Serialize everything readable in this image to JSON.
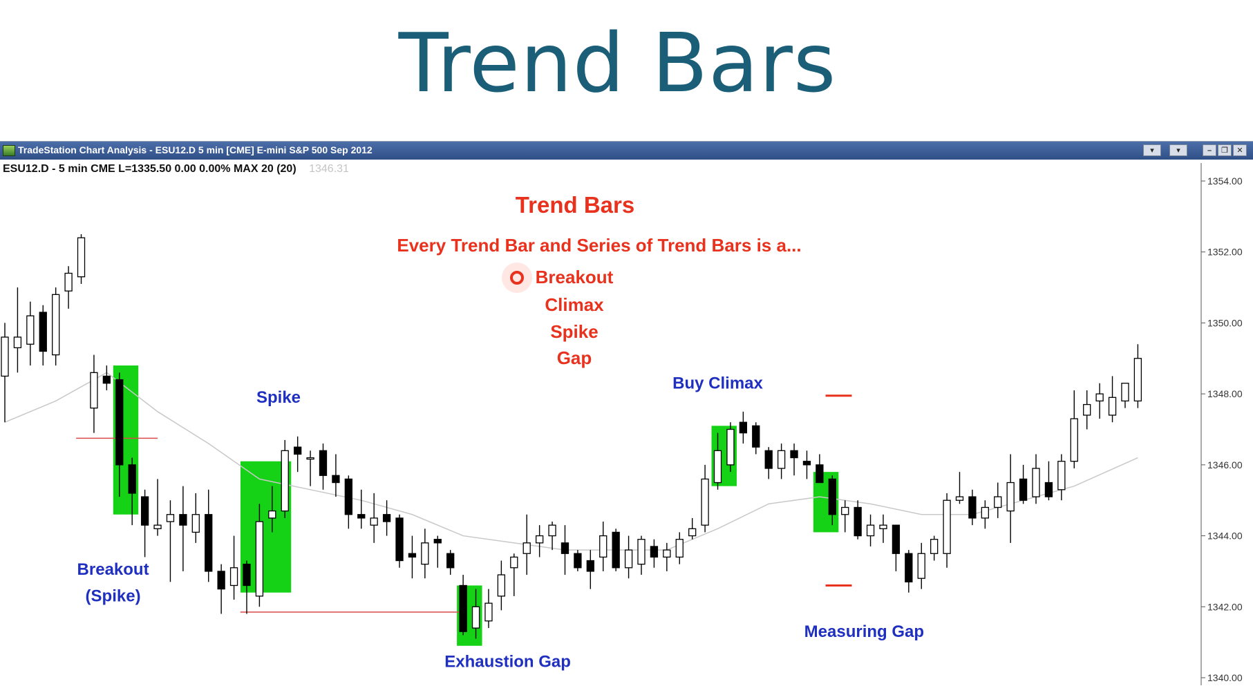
{
  "slide": {
    "title": "Trend Bars"
  },
  "window": {
    "title": "TradeStation Chart Analysis - ESU12.D 5 min [CME] E-mini S&P 500 Sep 2012",
    "symbol_line": "ESU12.D - 5 min  CME  L=1335.50  0.00  0.00%  MAX 20 (20)",
    "last_price_text": "1346.31",
    "controls": [
      "minimize",
      "restore",
      "close"
    ]
  },
  "colors": {
    "candle_up_fill": "#ffffff",
    "candle_down_fill": "#000000",
    "highlight_green": "#16d216",
    "annotation_red": "#e8321e",
    "annotation_blue": "#1f2fbf",
    "moving_average": "#c8c8c8",
    "level_line": "#d94a4a"
  },
  "chart_data": {
    "type": "candlestick",
    "title": "Trend Bars",
    "subtitle": "Every Trend Bar and Series of Trend Bars is a...",
    "list_items": [
      "Breakout",
      "Climax",
      "Spike",
      "Gap"
    ],
    "y_axis": {
      "range": [
        1339.8,
        1354.5
      ],
      "ticks": [
        1354,
        1352,
        1350,
        1348,
        1346,
        1344,
        1342,
        1340
      ],
      "tick_labels": [
        "1354.00",
        "1352.00",
        "1350.00",
        "1348.00",
        "1346.00",
        "1344.00",
        "1342.00",
        "1340.00"
      ]
    },
    "candles": [
      {
        "o": 1348.5,
        "h": 1350.0,
        "l": 1347.2,
        "c": 1349.6
      },
      {
        "o": 1349.3,
        "h": 1351.0,
        "l": 1348.6,
        "c": 1349.6
      },
      {
        "o": 1349.4,
        "h": 1350.6,
        "l": 1348.8,
        "c": 1350.2
      },
      {
        "o": 1350.3,
        "h": 1350.5,
        "l": 1348.8,
        "c": 1349.2
      },
      {
        "o": 1349.1,
        "h": 1351.0,
        "l": 1348.8,
        "c": 1350.8
      },
      {
        "o": 1350.9,
        "h": 1351.6,
        "l": 1350.4,
        "c": 1351.4
      },
      {
        "o": 1351.3,
        "h": 1352.5,
        "l": 1351.1,
        "c": 1352.4
      },
      {
        "o": 1347.6,
        "h": 1349.1,
        "l": 1346.9,
        "c": 1348.6
      },
      {
        "o": 1348.5,
        "h": 1348.8,
        "l": 1348.1,
        "c": 1348.3
      },
      {
        "o": 1348.4,
        "h": 1348.6,
        "l": 1345.1,
        "c": 1346.0
      },
      {
        "o": 1346.0,
        "h": 1346.2,
        "l": 1344.3,
        "c": 1345.2
      },
      {
        "o": 1345.1,
        "h": 1345.3,
        "l": 1343.4,
        "c": 1344.3
      },
      {
        "o": 1344.2,
        "h": 1345.6,
        "l": 1344.0,
        "c": 1344.3
      },
      {
        "o": 1344.4,
        "h": 1345.0,
        "l": 1342.7,
        "c": 1344.6
      },
      {
        "o": 1344.6,
        "h": 1345.4,
        "l": 1343.0,
        "c": 1344.3
      },
      {
        "o": 1344.1,
        "h": 1345.2,
        "l": 1343.8,
        "c": 1344.6
      },
      {
        "o": 1344.6,
        "h": 1345.3,
        "l": 1342.7,
        "c": 1343.0
      },
      {
        "o": 1343.0,
        "h": 1343.2,
        "l": 1341.8,
        "c": 1342.5
      },
      {
        "o": 1342.6,
        "h": 1344.0,
        "l": 1342.2,
        "c": 1343.1
      },
      {
        "o": 1343.2,
        "h": 1343.3,
        "l": 1341.8,
        "c": 1342.6
      },
      {
        "o": 1342.3,
        "h": 1344.9,
        "l": 1342.0,
        "c": 1344.4
      },
      {
        "o": 1344.5,
        "h": 1345.4,
        "l": 1344.1,
        "c": 1344.7
      },
      {
        "o": 1344.7,
        "h": 1346.7,
        "l": 1344.5,
        "c": 1346.4
      },
      {
        "o": 1346.5,
        "h": 1346.8,
        "l": 1345.8,
        "c": 1346.3
      },
      {
        "o": 1346.2,
        "h": 1346.4,
        "l": 1345.4,
        "c": 1346.2
      },
      {
        "o": 1346.4,
        "h": 1346.6,
        "l": 1345.3,
        "c": 1345.7
      },
      {
        "o": 1345.7,
        "h": 1346.3,
        "l": 1345.1,
        "c": 1345.5
      },
      {
        "o": 1345.6,
        "h": 1345.7,
        "l": 1344.2,
        "c": 1344.6
      },
      {
        "o": 1344.6,
        "h": 1345.3,
        "l": 1344.2,
        "c": 1344.5
      },
      {
        "o": 1344.3,
        "h": 1345.2,
        "l": 1343.8,
        "c": 1344.5
      },
      {
        "o": 1344.6,
        "h": 1345.0,
        "l": 1344.0,
        "c": 1344.4
      },
      {
        "o": 1344.5,
        "h": 1344.6,
        "l": 1343.1,
        "c": 1343.3
      },
      {
        "o": 1343.5,
        "h": 1344.0,
        "l": 1342.8,
        "c": 1343.4
      },
      {
        "o": 1343.2,
        "h": 1344.2,
        "l": 1342.8,
        "c": 1343.8
      },
      {
        "o": 1343.9,
        "h": 1344.0,
        "l": 1343.1,
        "c": 1343.8
      },
      {
        "o": 1343.5,
        "h": 1343.6,
        "l": 1342.9,
        "c": 1343.1
      },
      {
        "o": 1342.6,
        "h": 1342.9,
        "l": 1341.2,
        "c": 1341.3
      },
      {
        "o": 1341.4,
        "h": 1342.5,
        "l": 1341.1,
        "c": 1342.0
      },
      {
        "o": 1341.6,
        "h": 1342.5,
        "l": 1341.4,
        "c": 1342.1
      },
      {
        "o": 1342.3,
        "h": 1343.3,
        "l": 1341.9,
        "c": 1342.9
      },
      {
        "o": 1343.1,
        "h": 1343.5,
        "l": 1342.3,
        "c": 1343.4
      },
      {
        "o": 1343.5,
        "h": 1344.6,
        "l": 1342.9,
        "c": 1343.8
      },
      {
        "o": 1343.8,
        "h": 1344.3,
        "l": 1343.4,
        "c": 1344.0
      },
      {
        "o": 1344.0,
        "h": 1344.4,
        "l": 1343.6,
        "c": 1344.3
      },
      {
        "o": 1343.8,
        "h": 1344.3,
        "l": 1342.9,
        "c": 1343.5
      },
      {
        "o": 1343.5,
        "h": 1343.6,
        "l": 1343.0,
        "c": 1343.1
      },
      {
        "o": 1343.3,
        "h": 1343.6,
        "l": 1342.5,
        "c": 1343.0
      },
      {
        "o": 1343.4,
        "h": 1344.4,
        "l": 1343.0,
        "c": 1344.0
      },
      {
        "o": 1344.1,
        "h": 1344.2,
        "l": 1343.0,
        "c": 1343.1
      },
      {
        "o": 1343.1,
        "h": 1344.0,
        "l": 1342.8,
        "c": 1343.6
      },
      {
        "o": 1343.2,
        "h": 1344.0,
        "l": 1342.9,
        "c": 1343.9
      },
      {
        "o": 1343.7,
        "h": 1343.9,
        "l": 1343.1,
        "c": 1343.4
      },
      {
        "o": 1343.4,
        "h": 1343.8,
        "l": 1343.0,
        "c": 1343.6
      },
      {
        "o": 1343.4,
        "h": 1344.1,
        "l": 1343.2,
        "c": 1343.9
      },
      {
        "o": 1344.0,
        "h": 1344.5,
        "l": 1343.9,
        "c": 1344.2
      },
      {
        "o": 1344.3,
        "h": 1346.0,
        "l": 1344.1,
        "c": 1345.6
      },
      {
        "o": 1345.5,
        "h": 1346.9,
        "l": 1345.3,
        "c": 1346.4
      },
      {
        "o": 1346.0,
        "h": 1347.2,
        "l": 1345.8,
        "c": 1347.0
      },
      {
        "o": 1347.2,
        "h": 1347.5,
        "l": 1346.6,
        "c": 1346.9
      },
      {
        "o": 1347.1,
        "h": 1347.2,
        "l": 1346.3,
        "c": 1346.5
      },
      {
        "o": 1346.4,
        "h": 1346.5,
        "l": 1345.6,
        "c": 1345.9
      },
      {
        "o": 1345.9,
        "h": 1346.6,
        "l": 1345.6,
        "c": 1346.4
      },
      {
        "o": 1346.4,
        "h": 1346.6,
        "l": 1345.7,
        "c": 1346.2
      },
      {
        "o": 1346.1,
        "h": 1346.4,
        "l": 1345.6,
        "c": 1346.0
      },
      {
        "o": 1346.0,
        "h": 1346.3,
        "l": 1345.5,
        "c": 1345.5
      },
      {
        "o": 1345.6,
        "h": 1345.7,
        "l": 1344.3,
        "c": 1344.6
      },
      {
        "o": 1344.6,
        "h": 1345.0,
        "l": 1344.1,
        "c": 1344.8
      },
      {
        "o": 1344.8,
        "h": 1345.0,
        "l": 1343.9,
        "c": 1344.0
      },
      {
        "o": 1344.0,
        "h": 1344.6,
        "l": 1343.7,
        "c": 1344.3
      },
      {
        "o": 1344.2,
        "h": 1344.6,
        "l": 1343.8,
        "c": 1344.3
      },
      {
        "o": 1344.3,
        "h": 1344.3,
        "l": 1343.0,
        "c": 1343.5
      },
      {
        "o": 1343.5,
        "h": 1343.6,
        "l": 1342.4,
        "c": 1342.7
      },
      {
        "o": 1342.8,
        "h": 1343.8,
        "l": 1342.5,
        "c": 1343.5
      },
      {
        "o": 1343.5,
        "h": 1344.0,
        "l": 1343.3,
        "c": 1343.9
      },
      {
        "o": 1343.5,
        "h": 1345.2,
        "l": 1343.1,
        "c": 1345.0
      },
      {
        "o": 1345.0,
        "h": 1345.8,
        "l": 1344.9,
        "c": 1345.1
      },
      {
        "o": 1345.1,
        "h": 1345.3,
        "l": 1344.3,
        "c": 1344.5
      },
      {
        "o": 1344.5,
        "h": 1345.0,
        "l": 1344.2,
        "c": 1344.8
      },
      {
        "o": 1344.8,
        "h": 1345.5,
        "l": 1344.5,
        "c": 1345.1
      },
      {
        "o": 1344.7,
        "h": 1346.3,
        "l": 1343.8,
        "c": 1345.5
      },
      {
        "o": 1345.6,
        "h": 1346.0,
        "l": 1344.9,
        "c": 1345.0
      },
      {
        "o": 1345.1,
        "h": 1346.3,
        "l": 1344.9,
        "c": 1345.9
      },
      {
        "o": 1345.5,
        "h": 1346.1,
        "l": 1345.0,
        "c": 1345.1
      },
      {
        "o": 1345.3,
        "h": 1346.3,
        "l": 1345.0,
        "c": 1346.1
      },
      {
        "o": 1346.1,
        "h": 1348.1,
        "l": 1345.9,
        "c": 1347.3
      },
      {
        "o": 1347.4,
        "h": 1348.1,
        "l": 1347.0,
        "c": 1347.7
      },
      {
        "o": 1347.8,
        "h": 1348.3,
        "l": 1347.3,
        "c": 1348.0
      },
      {
        "o": 1347.4,
        "h": 1348.5,
        "l": 1347.2,
        "c": 1347.9
      },
      {
        "o": 1347.8,
        "h": 1348.3,
        "l": 1347.6,
        "c": 1348.3
      },
      {
        "o": 1347.8,
        "h": 1349.4,
        "l": 1347.6,
        "c": 1349.0
      }
    ],
    "moving_average": [
      [
        0,
        1347.2
      ],
      [
        4,
        1347.8
      ],
      [
        8,
        1348.6
      ],
      [
        12,
        1347.5
      ],
      [
        16,
        1346.6
      ],
      [
        20,
        1345.6
      ],
      [
        24,
        1345.3
      ],
      [
        28,
        1345.0
      ],
      [
        32,
        1344.6
      ],
      [
        36,
        1344.0
      ],
      [
        40,
        1343.8
      ],
      [
        44,
        1343.6
      ],
      [
        48,
        1343.6
      ],
      [
        52,
        1343.6
      ],
      [
        56,
        1344.2
      ],
      [
        60,
        1344.9
      ],
      [
        64,
        1345.1
      ],
      [
        68,
        1344.9
      ],
      [
        72,
        1344.6
      ],
      [
        76,
        1344.6
      ],
      [
        80,
        1345.0
      ],
      [
        84,
        1345.4
      ],
      [
        89,
        1346.2
      ]
    ],
    "highlight_boxes": [
      {
        "from": 9,
        "to": 10,
        "top": 1348.8,
        "bottom": 1344.6
      },
      {
        "from": 19,
        "to": 22,
        "top": 1346.1,
        "bottom": 1342.4
      },
      {
        "from": 36,
        "to": 37,
        "top": 1342.6,
        "bottom": 1340.9
      },
      {
        "from": 56,
        "to": 57,
        "top": 1347.1,
        "bottom": 1345.4
      },
      {
        "from": 64,
        "to": 65,
        "top": 1345.8,
        "bottom": 1344.1
      }
    ],
    "level_lines": [
      {
        "from": 5.6,
        "to": 12.0,
        "price": 1346.75
      },
      {
        "from": 18.5,
        "to": 35.8,
        "price": 1341.85
      }
    ],
    "measure_marks": [
      {
        "x": 65.5,
        "price": 1347.95
      },
      {
        "x": 65.5,
        "price": 1342.6
      }
    ],
    "labels": [
      {
        "text": "Breakout",
        "x": 8.5,
        "price": 1342.9
      },
      {
        "text": "(Spike)",
        "x": 8.5,
        "price": 1342.15
      },
      {
        "text": "Spike",
        "x": 21.5,
        "price": 1347.75
      },
      {
        "text": "Exhaustion Gap",
        "x": 39.5,
        "price": 1340.3
      },
      {
        "text": "Buy Climax",
        "x": 56.0,
        "price": 1348.15
      },
      {
        "text": "Measuring Gap",
        "x": 67.5,
        "price": 1341.15
      }
    ]
  }
}
